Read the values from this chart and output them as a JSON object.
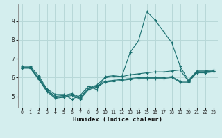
{
  "xlabel": "Humidex (Indice chaleur)",
  "background_color": "#d4eeee",
  "grid_color": "#b8d8d8",
  "line_color": "#1a7070",
  "x_ticks": [
    0,
    1,
    2,
    3,
    4,
    5,
    6,
    7,
    8,
    9,
    10,
    11,
    12,
    13,
    14,
    15,
    16,
    17,
    18,
    19,
    20,
    21,
    22,
    23
  ],
  "y_ticks": [
    5,
    6,
    7,
    8,
    9
  ],
  "ylim": [
    4.4,
    9.9
  ],
  "xlim": [
    -0.5,
    23.5
  ],
  "line1_y": [
    6.6,
    6.6,
    6.1,
    5.4,
    5.1,
    5.1,
    4.85,
    5.05,
    5.55,
    5.35,
    6.05,
    6.1,
    6.05,
    7.35,
    7.95,
    9.5,
    9.05,
    8.45,
    7.85,
    6.6,
    5.85,
    6.35,
    6.35,
    6.4
  ],
  "line2_y": [
    6.55,
    6.55,
    6.0,
    5.35,
    5.0,
    5.05,
    5.15,
    4.95,
    5.45,
    5.6,
    6.0,
    6.05,
    6.05,
    6.15,
    6.2,
    6.25,
    6.3,
    6.3,
    6.35,
    6.4,
    5.8,
    6.3,
    6.3,
    6.35
  ],
  "line3_y": [
    6.5,
    6.5,
    5.95,
    5.3,
    4.95,
    5.0,
    5.1,
    4.9,
    5.4,
    5.55,
    5.8,
    5.85,
    5.9,
    5.95,
    6.0,
    6.0,
    6.0,
    6.0,
    6.05,
    5.8,
    5.8,
    6.3,
    6.3,
    6.35
  ],
  "line4_y": [
    6.5,
    6.5,
    5.9,
    5.25,
    4.9,
    4.95,
    5.05,
    4.85,
    5.35,
    5.5,
    5.75,
    5.8,
    5.85,
    5.9,
    5.95,
    5.95,
    5.95,
    5.95,
    6.0,
    5.75,
    5.75,
    6.25,
    6.25,
    6.3
  ]
}
